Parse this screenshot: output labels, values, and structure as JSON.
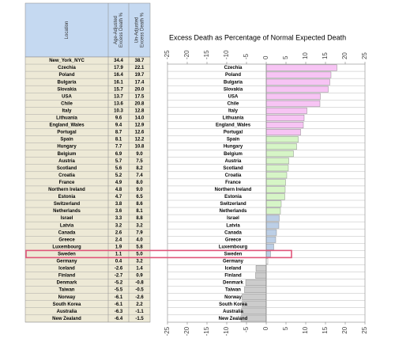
{
  "table": {
    "headers": [
      [
        "Location"
      ],
      [
        "Age-Adjusted",
        "Excess Death %"
      ],
      [
        "Un-Adjusted",
        "Excess Death %"
      ]
    ],
    "rows": [
      [
        "New_York_NYC",
        "34.4",
        "38.7"
      ],
      [
        "Czechia",
        "17.9",
        "22.1"
      ],
      [
        "Poland",
        "16.4",
        "19.7"
      ],
      [
        "Bulgaria",
        "16.1",
        "17.4"
      ],
      [
        "Slovakia",
        "15.7",
        "20.0"
      ],
      [
        "USA",
        "13.7",
        "17.5"
      ],
      [
        "Chile",
        "13.6",
        "20.8"
      ],
      [
        "Italy",
        "10.3",
        "12.8"
      ],
      [
        "Lithuania",
        "9.6",
        "14.0"
      ],
      [
        "England_Wales",
        "9.4",
        "12.9"
      ],
      [
        "Portugal",
        "8.7",
        "12.6"
      ],
      [
        "Spain",
        "8.1",
        "12.2"
      ],
      [
        "Hungary",
        "7.7",
        "10.8"
      ],
      [
        "Belgium",
        "6.9",
        "9.0"
      ],
      [
        "Austria",
        "5.7",
        "7.5"
      ],
      [
        "Scotland",
        "5.6",
        "8.2"
      ],
      [
        "Croatia",
        "5.2",
        "7.4"
      ],
      [
        "France",
        "4.9",
        "8.0"
      ],
      [
        "Northern Ireland",
        "4.8",
        "9.0"
      ],
      [
        "Estonia",
        "4.7",
        "6.5"
      ],
      [
        "Switzerland",
        "3.8",
        "8.6"
      ],
      [
        "Netherlands",
        "3.6",
        "8.1"
      ],
      [
        "Israel",
        "3.3",
        "8.8"
      ],
      [
        "Latvia",
        "3.2",
        "3.2"
      ],
      [
        "Canada",
        "2.6",
        "7.9"
      ],
      [
        "Greece",
        "2.4",
        "4.0"
      ],
      [
        "Luxembourg",
        "1.9",
        "5.8"
      ],
      [
        "Sweden",
        "1.1",
        "5.0"
      ],
      [
        "Germany",
        "0.4",
        "3.2"
      ],
      [
        "Iceland",
        "-2.6",
        "1.4"
      ],
      [
        "Finland",
        "-2.7",
        "0.9"
      ],
      [
        "Denmark",
        "-5.2",
        "-0.8"
      ],
      [
        "Taiwan",
        "-5.5",
        "-0.5"
      ],
      [
        "Norway",
        "-6.1",
        "-2.6"
      ],
      [
        "South Korea",
        "-6.1",
        "2.2"
      ],
      [
        "Australia",
        "-6.3",
        "-1.1"
      ],
      [
        "New Zealand",
        "-6.4",
        "-1.5"
      ]
    ]
  },
  "chart_data": {
    "type": "barh",
    "title": "Excess Death as Percentage of Normal Expected Death",
    "categories": [
      "Czechia",
      "Poland",
      "Bulgaria",
      "Slovakia",
      "USA",
      "Chile",
      "Italy",
      "Lithuania",
      "England_Wales",
      "Portugal",
      "Spain",
      "Hungary",
      "Belgium",
      "Austria",
      "Scotland",
      "Croatia",
      "France",
      "Northern Ireland",
      "Estonia",
      "Switzerland",
      "Netherlands",
      "Israel",
      "Latvia",
      "Canada",
      "Greece",
      "Luxembourg",
      "Sweden",
      "Germany",
      "Iceland",
      "Finland",
      "Denmark",
      "Taiwan",
      "Norway",
      "South Korea",
      "Australia",
      "New Zealand"
    ],
    "values": [
      17.9,
      16.4,
      16.1,
      15.7,
      13.7,
      13.6,
      10.3,
      9.6,
      9.4,
      8.7,
      8.1,
      7.7,
      6.9,
      5.7,
      5.6,
      5.2,
      4.9,
      4.8,
      4.7,
      3.8,
      3.6,
      3.3,
      3.2,
      2.6,
      2.4,
      1.9,
      1.1,
      0.4,
      -2.6,
      -2.7,
      -5.2,
      -5.5,
      -6.1,
      -6.1,
      -6.3,
      -6.4
    ],
    "colors": [
      "#f7c4f4",
      "#f7c4f4",
      "#f7c4f4",
      "#f7c4f4",
      "#f7c4f4",
      "#f7c4f4",
      "#f7c4f4",
      "#f7c4f4",
      "#f7c4f4",
      "#f7c4f4",
      "#d6f5c6",
      "#d6f5c6",
      "#d6f5c6",
      "#d6f5c6",
      "#d6f5c6",
      "#d6f5c6",
      "#d6f5c6",
      "#d6f5c6",
      "#d6f5c6",
      "#d6f5c6",
      "#d6f5c6",
      "#bccfe6",
      "#bccfe6",
      "#bccfe6",
      "#bccfe6",
      "#bccfe6",
      "#bccfe6",
      "#ffffff",
      "#cccccc",
      "#cccccc",
      "#cccccc",
      "#cccccc",
      "#cccccc",
      "#cccccc",
      "#cccccc",
      "#cccccc"
    ],
    "xlim": [
      -25,
      25
    ],
    "xticks": [
      -25,
      -20,
      -15,
      -10,
      -5,
      0,
      5,
      10,
      15,
      20,
      25
    ]
  }
}
